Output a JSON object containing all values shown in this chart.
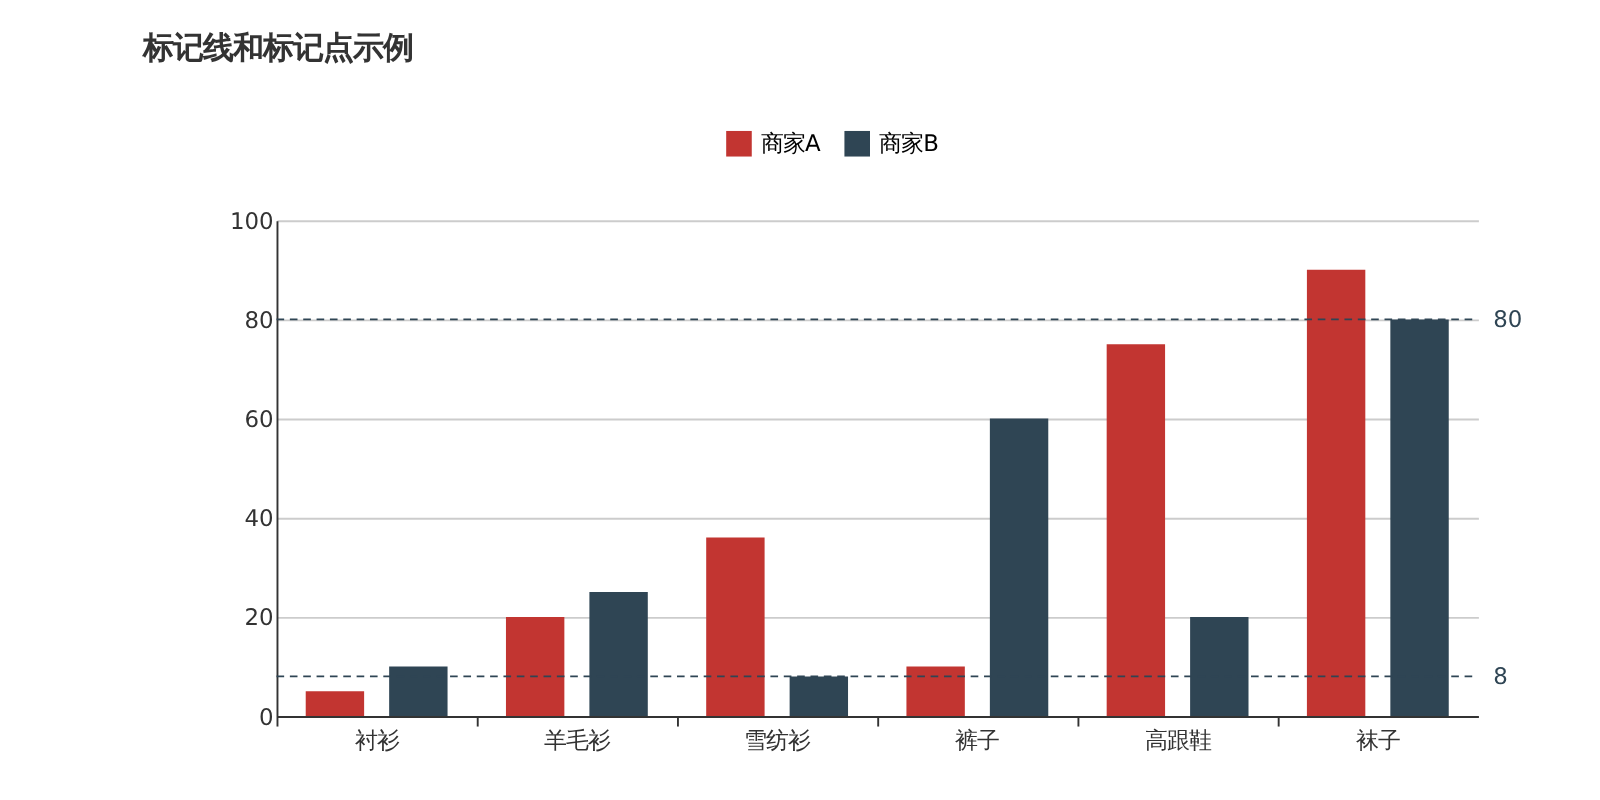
{
  "chart_data": {
    "type": "bar",
    "title": "标记线和标记点示例",
    "categories": [
      "衬衫",
      "羊毛衫",
      "雪纺衫",
      "裤子",
      "高跟鞋",
      "袜子"
    ],
    "series": [
      {
        "name": "商家A",
        "color": "#c23531",
        "values": [
          5,
          20,
          36,
          10,
          75,
          90
        ]
      },
      {
        "name": "商家B",
        "color": "#2f4554",
        "values": [
          10,
          25,
          8,
          60,
          20,
          80
        ]
      }
    ],
    "ylim": [
      0,
      100
    ],
    "yticks": [
      0,
      20,
      40,
      60,
      80,
      100
    ],
    "grid": "y",
    "legend": "top",
    "ref_lines": [
      {
        "axis": "y",
        "value": 80,
        "label": "80",
        "color": "#2f4554",
        "line_style": "dashed"
      },
      {
        "axis": "y",
        "value": 8,
        "label": "8",
        "color": "#2f4554",
        "line_style": "dashed"
      }
    ]
  }
}
